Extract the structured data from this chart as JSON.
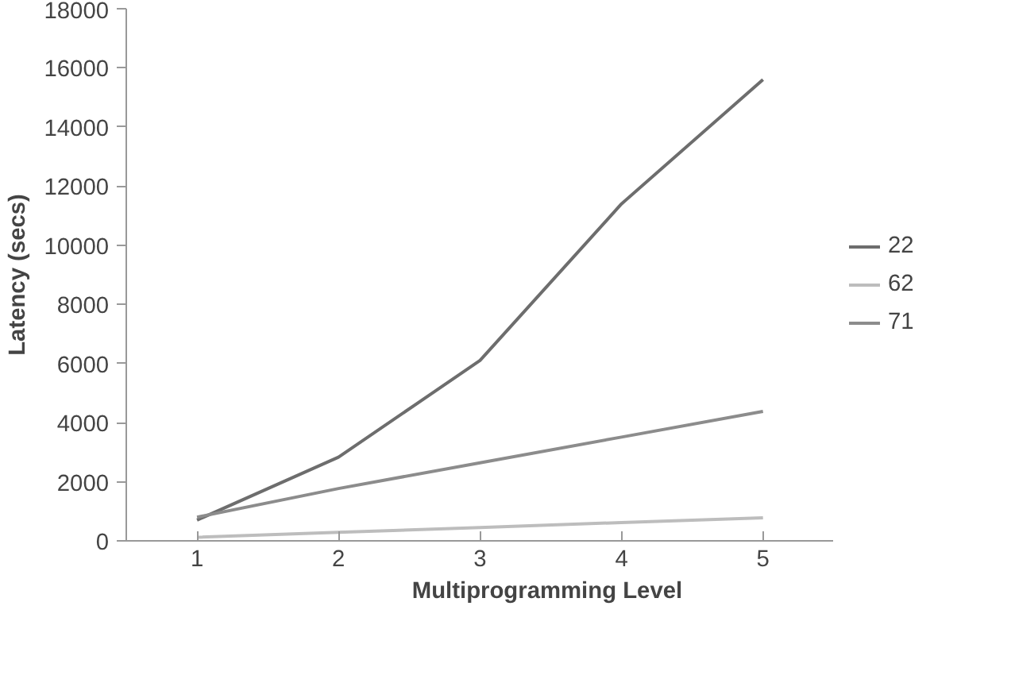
{
  "chart_data": {
    "type": "line",
    "xlabel": "Multiprogramming Level",
    "ylabel": "Latency (secs)",
    "categories": [
      "1",
      "2",
      "3",
      "4",
      "5"
    ],
    "series": [
      {
        "name": "22",
        "color": "#6d6d6d",
        "values": [
          700,
          2830,
          6100,
          11400,
          15600
        ]
      },
      {
        "name": "62",
        "color": "#bdbdbd",
        "values": [
          120,
          290,
          450,
          620,
          780
        ]
      },
      {
        "name": "71",
        "color": "#8c8c8c",
        "values": [
          800,
          1770,
          2640,
          3510,
          4380
        ]
      }
    ],
    "ylim": [
      0,
      18000
    ],
    "yticks": [
      0,
      2000,
      4000,
      6000,
      8000,
      10000,
      12000,
      14000,
      16000,
      18000
    ],
    "grid": false,
    "legend": "right",
    "marker": "none",
    "line_style": "solid"
  }
}
